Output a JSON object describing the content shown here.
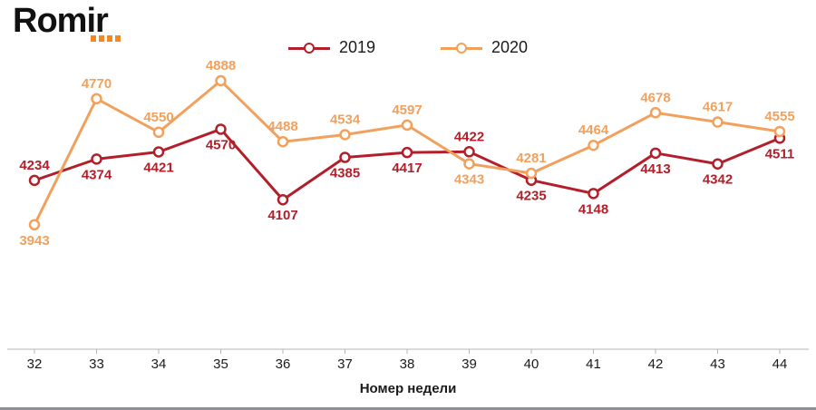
{
  "logo": {
    "text": "Romir"
  },
  "legend": [
    {
      "label": "2019"
    },
    {
      "label": "2020"
    }
  ],
  "chart_data": {
    "type": "line",
    "title": "",
    "xlabel": "Номер недели",
    "ylabel": "",
    "categories": [
      "32",
      "33",
      "34",
      "35",
      "36",
      "37",
      "38",
      "39",
      "40",
      "41",
      "42",
      "43",
      "44"
    ],
    "series": [
      {
        "name": "2019",
        "color": "#b21f2a",
        "values": [
          4234,
          4374,
          4421,
          4570,
          4107,
          4385,
          4417,
          4422,
          4235,
          4148,
          4413,
          4342,
          4511
        ]
      },
      {
        "name": "2020",
        "color": "#f2a15d",
        "values": [
          3943,
          4770,
          4550,
          4888,
          4488,
          4534,
          4597,
          4343,
          4281,
          4464,
          4678,
          4617,
          4555
        ]
      }
    ],
    "ylim": [
      3900,
      4900
    ],
    "grid": false,
    "legend_position": "top-center",
    "marker": "open-circle"
  }
}
